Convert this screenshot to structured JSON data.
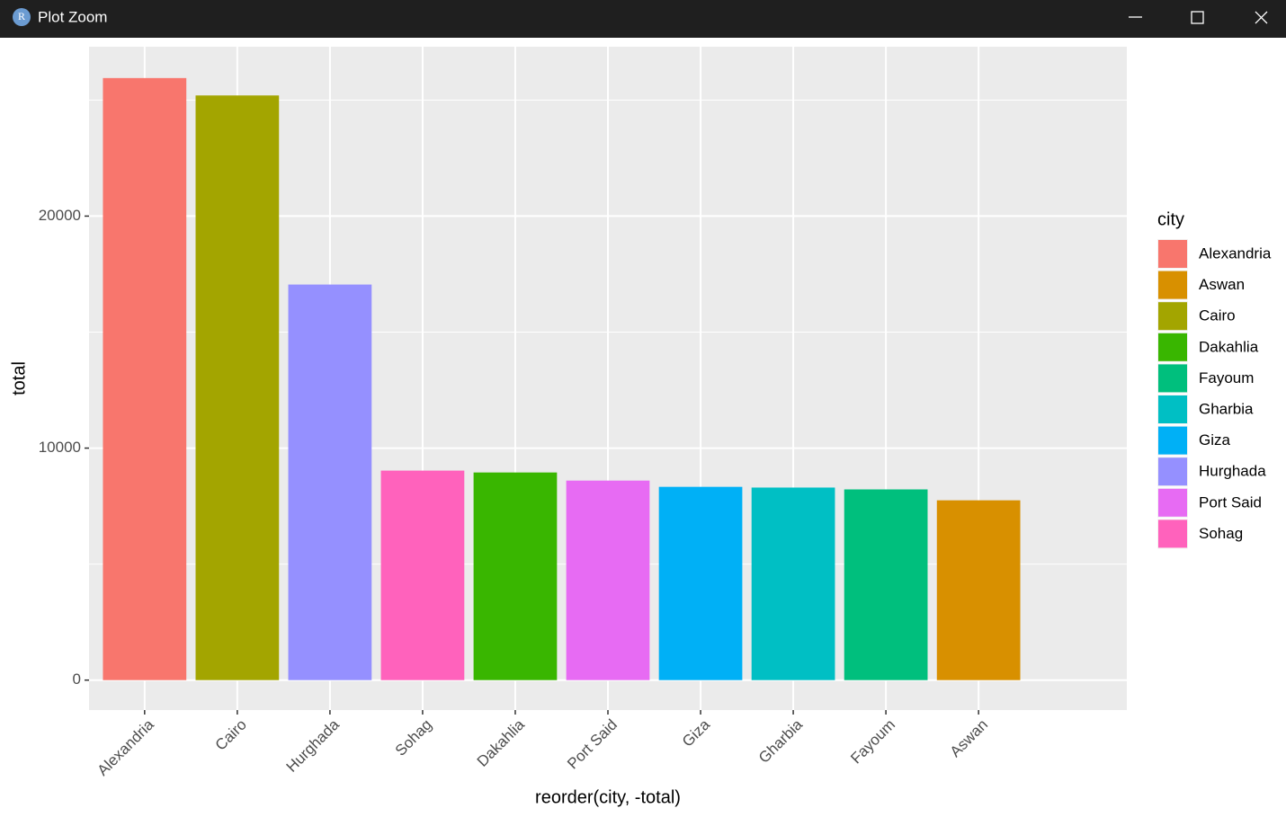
{
  "window_title": "Plot Zoom",
  "chart_data": {
    "type": "bar",
    "categories": [
      "Alexandria",
      "Cairo",
      "Hurghada",
      "Sohag",
      "Dakahlia",
      "Port Said",
      "Giza",
      "Gharbia",
      "Fayoum",
      "Aswan"
    ],
    "values": [
      25950,
      25200,
      17050,
      9030,
      8950,
      8600,
      8330,
      8300,
      8220,
      7750
    ],
    "x_label": "reorder(city, -total)",
    "y_label": "total",
    "ylim": [
      -1290,
      27300
    ],
    "yticks": [
      0,
      10000,
      20000
    ],
    "grid": true,
    "legend": {
      "title": "city",
      "position": "right",
      "items": [
        {
          "name": "Alexandria",
          "color": "#F8766D"
        },
        {
          "name": "Aswan",
          "color": "#D89000"
        },
        {
          "name": "Cairo",
          "color": "#A3A500"
        },
        {
          "name": "Dakahlia",
          "color": "#39B600"
        },
        {
          "name": "Fayoum",
          "color": "#00BF7D"
        },
        {
          "name": "Gharbia",
          "color": "#00BFC4"
        },
        {
          "name": "Giza",
          "color": "#00B0F6"
        },
        {
          "name": "Hurghada",
          "color": "#9590FF"
        },
        {
          "name": "Port Said",
          "color": "#E76BF3"
        },
        {
          "name": "Sohag",
          "color": "#FF62BC"
        }
      ]
    }
  }
}
